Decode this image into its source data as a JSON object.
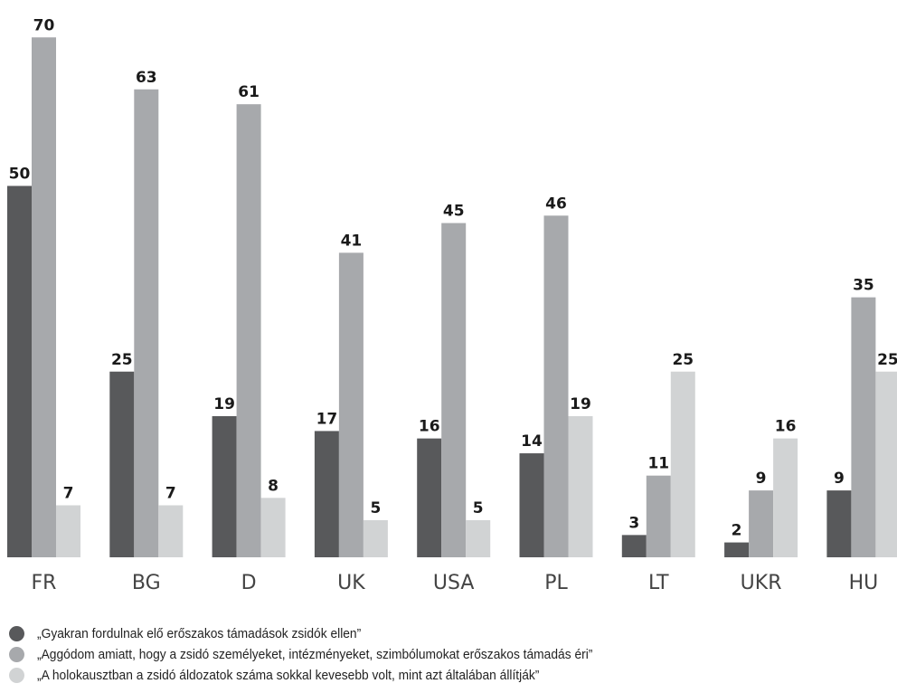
{
  "chart_data": {
    "type": "bar",
    "categories": [
      "FR",
      "BG",
      "D",
      "UK",
      "USA",
      "PL",
      "LT",
      "UKR",
      "HU"
    ],
    "series": [
      {
        "name": "„Gyakran fordulnak elő erőszakos támadások zsidók ellen”",
        "color": "#58595b",
        "values": [
          50,
          25,
          19,
          17,
          16,
          14,
          3,
          2,
          9
        ]
      },
      {
        "name": "„Aggódom amiatt, hogy a zsidó személyeket, intézményeket, szimbólumokat erőszakos támadás éri”",
        "color": "#a7a9ac",
        "values": [
          70,
          63,
          61,
          41,
          45,
          46,
          11,
          9,
          35
        ]
      },
      {
        "name": "„A holokausztban a zsidó áldozatok száma sokkal kevesebb volt, mint azt általában állítják”",
        "color": "#d1d3d4",
        "values": [
          7,
          7,
          8,
          5,
          5,
          19,
          25,
          16,
          25
        ]
      }
    ],
    "ylim": [
      0,
      70
    ],
    "grid": false,
    "legend_position": "bottom-left",
    "title": "",
    "xlabel": "",
    "ylabel": ""
  }
}
